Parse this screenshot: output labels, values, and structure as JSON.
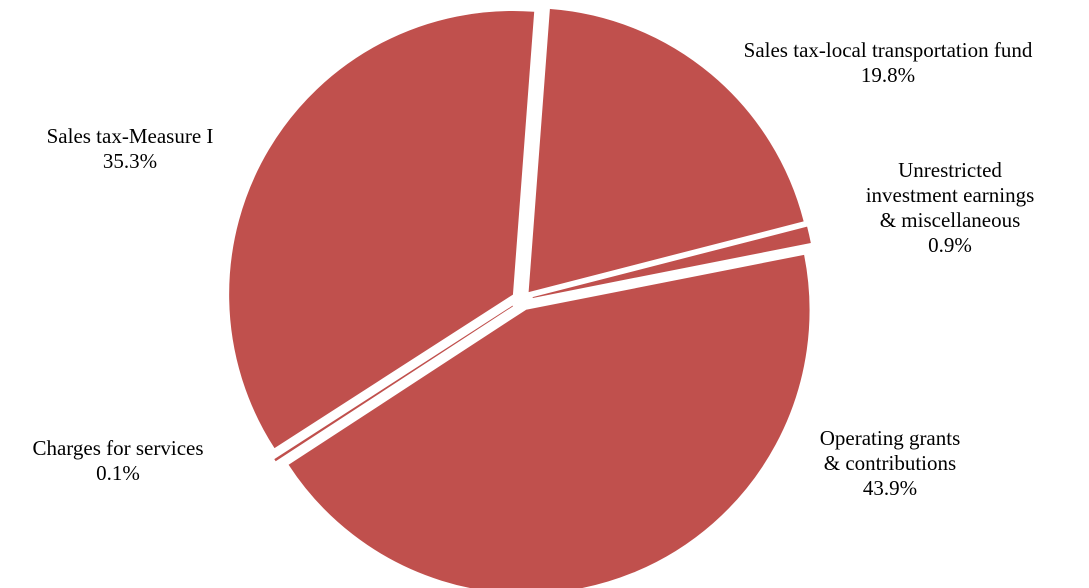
{
  "chart_data": {
    "type": "pie",
    "title": "",
    "slice_color": "#C0504D",
    "background": "#FFFFFF",
    "exploded": true,
    "slices": [
      {
        "label": [
          "Sales tax-local transportation fund"
        ],
        "pct_label": "19.8%",
        "value": 19.8
      },
      {
        "label": [
          "Unrestricted",
          "investment earnings",
          "& miscellaneous"
        ],
        "pct_label": "0.9%",
        "value": 0.9
      },
      {
        "label": [
          "Operating grants",
          "& contributions"
        ],
        "pct_label": "43.9%",
        "value": 43.9
      },
      {
        "label": [
          "Charges for services"
        ],
        "pct_label": "0.1%",
        "value": 0.1
      },
      {
        "label": [
          "Sales tax-Measure I"
        ],
        "pct_label": "35.3%",
        "value": 35.3
      }
    ]
  }
}
